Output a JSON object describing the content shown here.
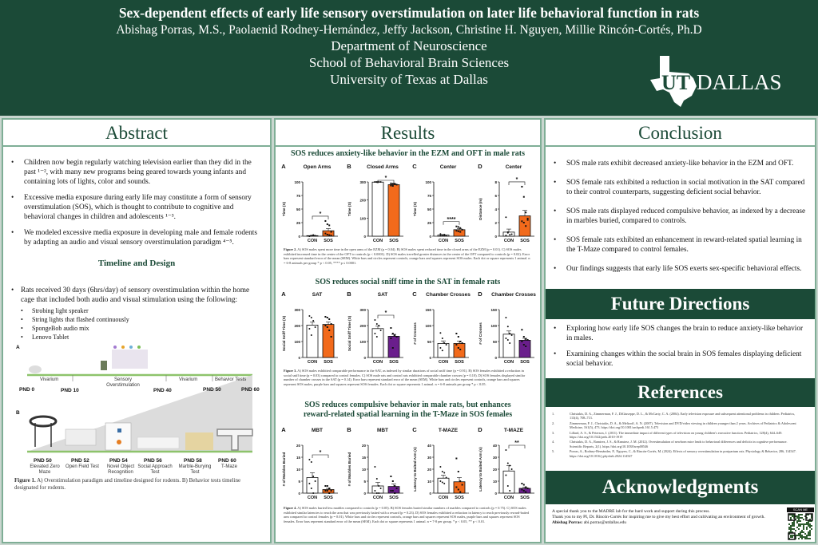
{
  "header": {
    "title": "Sex-dependent effects of early life sensory overstimulation on later life behavioral function in rats",
    "authors": "Abishag Porras, M.S., Paolaenid Rodney-Hernández, Jeffy Jackson, Christine H. Nguyen, Millie Rincón-Cortés, Ph.D",
    "dept": "Department of Neuroscience",
    "school": "School of Behavioral Brain Sciences",
    "university": "University of Texas at Dallas",
    "logo": "UT DALLAS"
  },
  "colors": {
    "brand_green": "#1b4a37",
    "con": "#ffffff",
    "sos_male": "#f26a1b",
    "sos_female": "#6a1e8c"
  },
  "abstract": {
    "heading": "Abstract",
    "bullets": [
      "Children now begin regularly watching television earlier than they did in the past ¹⁻², with many new programs being geared towards young infants and containing lots of lights, color and sounds.",
      "Excessive media exposure during early life may constitute a form of sensory overstimulation (SOS), which is thought to contribute to cognitive and behavioral changes in children and adolescents ¹⁻³.",
      "We modeled excessive media exposure in developing male and female rodents by adapting an audio and visual sensory overstimulation paradigm ⁴⁻⁵."
    ],
    "timeline_heading": "Timeline and Design",
    "design_bullet": "Rats received 30 days (6hrs/day) of sensory overstimulation within the home cage that included both audio and visual stimulation using the following:",
    "design_items": [
      "Strobing light speaker",
      "String lights that flashed continuously",
      "SpongeBob audio mix",
      "Lenovo Tablet"
    ],
    "figure1": {
      "label_a": "A",
      "label_b": "B",
      "phases": [
        "Vivarium",
        "Sensory Overstimulation",
        "Vivarium",
        "Behavior Tests"
      ],
      "pnds_top": [
        "PND 0",
        "PND 10",
        "PND 40",
        "PND 50",
        "PND 60"
      ],
      "tests": [
        {
          "pnd": "PND 50",
          "name": "Elevated Zero Maze"
        },
        {
          "pnd": "PND 52",
          "name": "Open Field Test"
        },
        {
          "pnd": "PND 54",
          "name": "Novel Object Recognition"
        },
        {
          "pnd": "PND 56",
          "name": "Social Approach Test"
        },
        {
          "pnd": "PND 58",
          "name": "Marble-Burying Test"
        },
        {
          "pnd": "PND 60",
          "name": "T-Maze"
        }
      ],
      "caption_bold": "Figure 1.",
      "caption": " A) Overstimulation paradigm and timeline designed for rodents. B) Behavior tests timeline designated for rodents."
    }
  },
  "results": {
    "heading": "Results",
    "fig2": {
      "title": "SOS reduces anxiety-like behavior in the EZM and OFT in male rats",
      "caption_bold": "Figure 2.",
      "caption": " A) SOS males spent more time in the open arms of the EZM (p = 0.04). B) SOS males spent reduced time in the closed arms of the EZM (p = 0.01). C) SOS males exhibited increased time in the center of the OFT to controls (p < 0.0001). D) SOS males travelled greater distances in the center of the OFT compared to controls (p = 0.02). Error bars represent standard error of the mean (SEM). White bars and circles represent controls, orange bars and squares represent SOS males. Each dot or square represents 1 animal. n = 6-8 animals per group * p < 0.05, **** p ≤ 0.0001."
    },
    "fig3": {
      "title": "SOS reduces social sniff time in the SAT in female rats",
      "caption_bold": "Figure 3.",
      "caption": " A) SOS males exhibited comparable performance in the SAT, as indexed by similar durations of social sniff time (p = 0.91). B) SOS females exhibited a reduction in social sniff time (p = 0.03) compared to control females. C) SOS male rats and control rats exhibited comparable chamber crosses (p = 0.10). D) SOS females displayed similar number of chamber crosses in the SAT (p = 0.14). Error bars represent standard error of the mean (SEM). White bars and circles represent controls, orange bars and squares represent SOS males, purple bars and squares represent SOS females. Each dot or square represents 1 animal. n = 6-8 animals per group * p < 0.05."
    },
    "fig4": {
      "title": "SOS reduces compulsive behavior in male rats, but enhances reward-related spatial learning in the T-Maze in SOS females",
      "caption_bold": "Figure 4.",
      "caption": " A) SOS males buried less marbles compared to controls (p = 0.05). B) SOS females buried similar numbers of marbles compared to controls (p = 0.75). C) SOS males exhibited similar latencies to reach the arm that was previously baited with a reward (p = 0.23). D) SOS females exhibited a reduction in latency to reach previously reward-baited arm compared to control females (p = 0.01). White bars and circles represent controls, orange bars and squares represent SOS males, purple bars and squares represent SOS females. Error bars represent standard error of the mean (SEM). Each dot or square represents 1 animal. n = 7-8 per group. * p < 0.05, ** p < 0.01."
    }
  },
  "chart_data": [
    {
      "figure": "2",
      "panel": "A",
      "title": "Open Arms",
      "type": "bar",
      "categories": [
        "CON",
        "SOS"
      ],
      "ylabel": "Time (S)",
      "ylim": [
        0,
        100
      ],
      "yticks": [
        0,
        25,
        50,
        75,
        100
      ],
      "values": [
        1,
        10
      ],
      "sem": [
        0.5,
        4
      ],
      "points": [
        [
          0,
          1,
          2,
          1,
          0,
          1,
          2
        ],
        [
          28,
          22,
          20,
          8,
          5,
          3,
          2,
          1
        ]
      ],
      "sig": "*",
      "sos_color": "male"
    },
    {
      "figure": "2",
      "panel": "B",
      "title": "Closed Arms",
      "type": "bar",
      "categories": [
        "CON",
        "SOS"
      ],
      "ylabel": "Time (S)",
      "ylim": [
        0,
        300
      ],
      "yticks": [
        0,
        100,
        200,
        300
      ],
      "values": [
        299,
        285
      ],
      "sem": [
        0.5,
        4
      ],
      "points": [
        [
          300,
          300,
          300,
          300,
          300,
          299
        ],
        [
          292,
          290,
          288,
          285,
          280,
          278,
          290
        ]
      ],
      "sig": "*",
      "sos_color": "male"
    },
    {
      "figure": "2",
      "panel": "C",
      "title": "Center",
      "type": "bar",
      "categories": [
        "CON",
        "SOS"
      ],
      "ylabel": "Time (S)",
      "ylim": [
        0,
        100
      ],
      "yticks": [
        0,
        25,
        50,
        75,
        100
      ],
      "values": [
        2,
        12
      ],
      "sem": [
        0.6,
        2
      ],
      "points": [
        [
          1,
          2,
          3,
          1,
          4,
          2,
          1
        ],
        [
          18,
          17,
          15,
          12,
          10,
          9,
          8
        ]
      ],
      "sig": "****",
      "sos_color": "male"
    },
    {
      "figure": "2",
      "panel": "D",
      "title": "Center",
      "type": "bar",
      "categories": [
        "CON",
        "SOS"
      ],
      "ylabel": "Distance (m)",
      "ylim": [
        0,
        8
      ],
      "yticks": [
        0,
        2,
        4,
        6,
        8
      ],
      "values": [
        0.6,
        3.0
      ],
      "sem": [
        0.45,
        0.8
      ],
      "points": [
        [
          2.8,
          0.5,
          0.2,
          0.3,
          0.1,
          0.6
        ],
        [
          7.3,
          5.8,
          3.5,
          2.6,
          2.2,
          2.0,
          1.5,
          2.4
        ]
      ],
      "sig": "*",
      "sos_color": "male"
    },
    {
      "figure": "3",
      "panel": "A",
      "title": "SAT",
      "type": "bar",
      "categories": [
        "CON",
        "SOS"
      ],
      "ylabel": "Social Sniff Time (S)",
      "ylim": [
        0,
        300
      ],
      "yticks": [
        0,
        100,
        200,
        300
      ],
      "values": [
        203,
        207
      ],
      "sem": [
        18,
        15
      ],
      "points": [
        [
          260,
          250,
          230,
          190,
          180,
          140
        ],
        [
          255,
          250,
          240,
          210,
          200,
          190,
          170,
          130
        ]
      ],
      "sig": "",
      "sos_color": "male"
    },
    {
      "figure": "3",
      "panel": "B",
      "title": "SAT",
      "type": "bar",
      "categories": [
        "CON",
        "SOS"
      ],
      "ylabel": "Social Sniff Time (S)",
      "ylim": [
        0,
        300
      ],
      "yticks": [
        0,
        100,
        200,
        300
      ],
      "values": [
        181,
        133
      ],
      "sem": [
        15,
        12
      ],
      "points": [
        [
          235,
          210,
          200,
          170,
          150,
          130
        ],
        [
          185,
          150,
          140,
          130,
          120,
          60
        ]
      ],
      "sig": "*",
      "sos_color": "female"
    },
    {
      "figure": "3",
      "panel": "C",
      "title": "Chamber Crosses",
      "type": "bar",
      "categories": [
        "CON",
        "SOS"
      ],
      "ylabel": "# of Crosses",
      "ylim": [
        0,
        150
      ],
      "yticks": [
        0,
        50,
        100,
        150
      ],
      "values": [
        44,
        44
      ],
      "sem": [
        8,
        7
      ],
      "points": [
        [
          77,
          60,
          45,
          40,
          30,
          22
        ],
        [
          75,
          65,
          50,
          45,
          40,
          30,
          25
        ]
      ],
      "sig": "",
      "sos_color": "male"
    },
    {
      "figure": "3",
      "panel": "D",
      "title": "Chamber Crosses",
      "type": "bar",
      "categories": [
        "CON",
        "SOS"
      ],
      "ylabel": "# of Crosses",
      "ylim": [
        0,
        150
      ],
      "yticks": [
        0,
        50,
        100,
        150
      ],
      "values": [
        73,
        54
      ],
      "sem": [
        10,
        6
      ],
      "points": [
        [
          125,
          97,
          75,
          70,
          60,
          55,
          45
        ],
        [
          87,
          65,
          58,
          55,
          50,
          40,
          35
        ]
      ],
      "sig": "",
      "sos_color": "female"
    },
    {
      "figure": "4",
      "panel": "A",
      "title": "MBT",
      "type": "bar",
      "categories": [
        "CON",
        "SOS"
      ],
      "ylabel": "# of Marbles Buried",
      "ylim": [
        0,
        20
      ],
      "yticks": [
        0,
        5,
        10,
        15,
        20
      ],
      "values": [
        6.5,
        1.5
      ],
      "sem": [
        2,
        0.5
      ],
      "points": [
        [
          14,
          13,
          7,
          5,
          4,
          2,
          0
        ],
        [
          3,
          3,
          2,
          1,
          1,
          1,
          0
        ]
      ],
      "sig": "*",
      "sos_color": "male"
    },
    {
      "figure": "4",
      "panel": "B",
      "title": "MBT",
      "type": "bar",
      "categories": [
        "CON",
        "SOS"
      ],
      "ylabel": "# of Marbles Buried",
      "ylim": [
        0,
        20
      ],
      "yticks": [
        0,
        5,
        10,
        15,
        20
      ],
      "values": [
        3,
        2.8
      ],
      "sem": [
        1.5,
        1
      ],
      "points": [
        [
          11,
          6,
          3,
          2,
          1,
          0,
          0
        ],
        [
          7,
          5,
          3,
          2,
          1,
          1,
          0
        ]
      ],
      "sig": "",
      "sos_color": "female"
    },
    {
      "figure": "4",
      "panel": "C",
      "title": "T-MAZE",
      "type": "bar",
      "categories": [
        "CON",
        "SOS"
      ],
      "ylabel": "Latency to Baited Arm (s)",
      "ylim": [
        0,
        40
      ],
      "yticks": [
        0,
        10,
        20,
        30,
        40
      ],
      "values": [
        12.5,
        9.5
      ],
      "sem": [
        2.5,
        3.5
      ],
      "points": [
        [
          22,
          18,
          17,
          13,
          10,
          9,
          8
        ],
        [
          29,
          18,
          10,
          7,
          5,
          3,
          1
        ]
      ],
      "sig": "",
      "sos_color": "male"
    },
    {
      "figure": "4",
      "panel": "D",
      "title": "T-MAZE",
      "type": "bar",
      "categories": [
        "CON",
        "SOS"
      ],
      "ylabel": "Latency to Baited Arm (s)",
      "ylim": [
        0,
        40
      ],
      "yticks": [
        0,
        10,
        20,
        30,
        40
      ],
      "values": [
        18.5,
        4
      ],
      "sem": [
        4.5,
        1
      ],
      "points": [
        [
          36,
          25,
          23,
          20,
          15,
          6,
          2
        ],
        [
          8,
          7,
          5,
          4,
          3,
          2,
          1
        ]
      ],
      "sig": "**",
      "sos_color": "female"
    }
  ],
  "conclusion": {
    "heading": "Conclusion",
    "bullets": [
      "SOS male rats exhibit decreased anxiety-like behavior in the EZM and OFT.",
      "SOS female rats exhibited a reduction in social motivation in the SAT compared to their control counterparts, suggesting deficient social behavior.",
      "SOS male rats displayed reduced compulsive behavior, as indexed by a decrease in marbles buried, compared to controls.",
      "SOS female rats exhibited an enhancement in reward-related spatial learning in the T-Maze compared to control females.",
      "Our findings suggests that early life SOS exerts sex-specific behavioral effects."
    ]
  },
  "future": {
    "heading": "Future Directions",
    "bullets": [
      "Exploring how early life SOS changes the brain to reduce anxiety-like behavior in males.",
      "Examining changes within the social brain in SOS females displaying deficient social behavior."
    ]
  },
  "references": {
    "heading": "References",
    "items": [
      {
        "n": "1.",
        "text": "Christakis, D. A., Zimmerman, F. J., DiGiuseppe, D. L., & McCarty, C. A. (2004). Early television exposure and subsequent attentional problems in children. Pediatrics, 113(4), 708–713."
      },
      {
        "n": "2.",
        "text": "Zimmerman, F. J., Christakis, D. A., & Meltzoff, A. N. (2007). Television and DVD/video viewing in children younger than 2 years. Archives of Pediatrics & Adolescent Medicine, 161(5), 473. https://doi.org/10.1001/archpedi.161.5.473"
      },
      {
        "n": "3.",
        "text": "Lillard, A. S., & Peterson, J. (2011). The immediate impact of different types of television on young children's executive function. Pediatrics, 128(4), 644–649. https://doi.org/10.1542/peds.2010-1919"
      },
      {
        "n": "4.",
        "text": "Christakis, D. A., Ramirez, J. S., & Ramirez, J. M. (2012). Overstimulation of newborn mice leads to behavioral differences and deficits in cognitive performance. Scientific Reports, 2(1). https://doi.org/10.1038/srep00546"
      },
      {
        "n": "5.",
        "text": "Porras, A., Rodney-Hernández, P., Nguyen, C., & Rincón-Cortés, M. (2024). Effects of sensory overstimulation in postpartum rats. Physiology & Behavior, 286, 114547. https://doi.org/10.1016/j.physbeh.2024.114547"
      }
    ]
  },
  "acknowledgments": {
    "heading": "Acknowledgments",
    "line1": "A special thank you to the MADRE lab for the hard work and support during this process.",
    "line2": "Thank you to my PI, Dr. Rincón-Cortés for inspiring me to give my best effort and cultivating an environment of growth.",
    "contact_name": "Abishag Porras:",
    "contact_email": "abi.porras@utdallas.edu",
    "qr_label": "SCAN ME"
  }
}
